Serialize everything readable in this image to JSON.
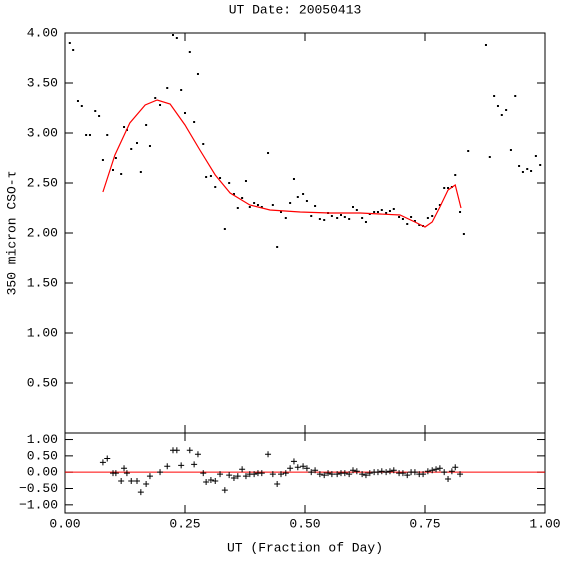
{
  "chart_data": [
    {
      "type": "scatter",
      "title": "UT Date: 20050413",
      "ylabel": "350 micron CSO-τ",
      "xlim": [
        0,
        1
      ],
      "ylim": [
        0,
        4
      ],
      "yticks": [
        {
          "value": 0.5,
          "label": "0.50"
        },
        {
          "value": 1,
          "label": "1.00"
        },
        {
          "value": 1.5,
          "label": "1.50"
        },
        {
          "value": 2,
          "label": "2.00"
        },
        {
          "value": 2.5,
          "label": "2.50"
        },
        {
          "value": 3,
          "label": "3.00"
        },
        {
          "value": 3.5,
          "label": "3.50"
        },
        {
          "value": 4,
          "label": "4.00"
        }
      ],
      "points": {
        "color": "#000000",
        "x": [
          0.01,
          0.017,
          0.027,
          0.035,
          0.044,
          0.052,
          0.063,
          0.071,
          0.079,
          0.088,
          0.1,
          0.106,
          0.117,
          0.123,
          0.129,
          0.138,
          0.15,
          0.158,
          0.169,
          0.177,
          0.188,
          0.198,
          0.213,
          0.225,
          0.233,
          0.242,
          0.25,
          0.26,
          0.269,
          0.277,
          0.288,
          0.294,
          0.304,
          0.313,
          0.323,
          0.333,
          0.342,
          0.352,
          0.36,
          0.369,
          0.377,
          0.385,
          0.394,
          0.402,
          0.41,
          0.423,
          0.433,
          0.442,
          0.45,
          0.46,
          0.469,
          0.477,
          0.485,
          0.496,
          0.504,
          0.513,
          0.521,
          0.531,
          0.54,
          0.548,
          0.556,
          0.567,
          0.575,
          0.583,
          0.592,
          0.6,
          0.608,
          0.619,
          0.627,
          0.635,
          0.644,
          0.652,
          0.66,
          0.669,
          0.677,
          0.685,
          0.696,
          0.704,
          0.713,
          0.721,
          0.729,
          0.738,
          0.746,
          0.756,
          0.765,
          0.773,
          0.781,
          0.79,
          0.798,
          0.806,
          0.813,
          0.823,
          0.831,
          0.84,
          0.877,
          0.885,
          0.894,
          0.902,
          0.91,
          0.919,
          0.929,
          0.938,
          0.946,
          0.954,
          0.963,
          0.971,
          0.981,
          0.99
        ],
        "y": [
          3.9,
          3.83,
          3.32,
          3.27,
          2.98,
          2.98,
          3.22,
          3.17,
          2.73,
          2.98,
          2.63,
          2.75,
          2.59,
          3.06,
          3.03,
          2.84,
          2.9,
          2.61,
          3.08,
          2.87,
          3.35,
          3.28,
          3.45,
          3.98,
          3.95,
          3.43,
          3.2,
          3.81,
          3.11,
          3.59,
          2.89,
          2.56,
          2.57,
          2.46,
          2.55,
          2.04,
          2.5,
          2.39,
          2.25,
          2.35,
          2.52,
          2.26,
          2.3,
          2.28,
          2.26,
          2.8,
          2.28,
          1.86,
          2.21,
          2.15,
          2.3,
          2.54,
          2.36,
          2.39,
          2.32,
          2.17,
          2.27,
          2.14,
          2.13,
          2.2,
          2.17,
          2.15,
          2.18,
          2.16,
          2.14,
          2.26,
          2.23,
          2.15,
          2.11,
          2.19,
          2.21,
          2.21,
          2.23,
          2.2,
          2.22,
          2.24,
          2.16,
          2.14,
          2.09,
          2.16,
          2.12,
          2.08,
          2.07,
          2.15,
          2.17,
          2.24,
          2.28,
          2.45,
          2.45,
          2.46,
          2.58,
          2.21,
          1.99,
          2.82,
          3.88,
          2.76,
          3.37,
          3.27,
          3.18,
          3.23,
          2.83,
          3.37,
          2.67,
          2.61,
          2.64,
          2.62,
          2.77,
          2.68
        ]
      },
      "fit": {
        "color": "#ff0000",
        "x": [
          0.079,
          0.104,
          0.135,
          0.167,
          0.192,
          0.219,
          0.25,
          0.281,
          0.313,
          0.344,
          0.385,
          0.427,
          0.49,
          0.552,
          0.615,
          0.656,
          0.698,
          0.729,
          0.75,
          0.765,
          0.781,
          0.798,
          0.813,
          0.825
        ],
        "y": [
          2.41,
          2.78,
          3.1,
          3.28,
          3.33,
          3.29,
          3.08,
          2.83,
          2.58,
          2.4,
          2.28,
          2.23,
          2.21,
          2.2,
          2.2,
          2.19,
          2.18,
          2.11,
          2.06,
          2.11,
          2.26,
          2.43,
          2.48,
          2.25
        ]
      }
    },
    {
      "type": "residual",
      "xlabel": "UT (Fraction of Day)",
      "xlim": [
        0,
        1
      ],
      "ylim": [
        -1.25,
        1.2
      ],
      "xticks": [
        {
          "value": 0,
          "label": "0.00"
        },
        {
          "value": 0.25,
          "label": "0.25"
        },
        {
          "value": 0.5,
          "label": "0.50"
        },
        {
          "value": 0.75,
          "label": "0.75"
        },
        {
          "value": 1,
          "label": "1.00"
        }
      ],
      "yticks": [
        {
          "value": -1,
          "label": "−1.00"
        },
        {
          "value": -0.5,
          "label": "−0.50"
        },
        {
          "value": 0,
          "label": "0.00"
        },
        {
          "value": 0.5,
          "label": "0.50"
        },
        {
          "value": 1,
          "label": "1.00"
        }
      ],
      "hline": 0,
      "hline_color": "#ff0000",
      "points": {
        "color": "#000000",
        "x": [
          0.079,
          0.088,
          0.1,
          0.106,
          0.117,
          0.123,
          0.129,
          0.138,
          0.15,
          0.158,
          0.169,
          0.177,
          0.198,
          0.213,
          0.225,
          0.233,
          0.242,
          0.26,
          0.269,
          0.277,
          0.288,
          0.294,
          0.304,
          0.313,
          0.323,
          0.333,
          0.342,
          0.352,
          0.36,
          0.369,
          0.377,
          0.385,
          0.394,
          0.402,
          0.41,
          0.423,
          0.433,
          0.442,
          0.45,
          0.46,
          0.469,
          0.477,
          0.485,
          0.496,
          0.504,
          0.513,
          0.521,
          0.531,
          0.54,
          0.548,
          0.556,
          0.567,
          0.575,
          0.583,
          0.592,
          0.6,
          0.608,
          0.619,
          0.627,
          0.635,
          0.644,
          0.652,
          0.66,
          0.669,
          0.677,
          0.685,
          0.696,
          0.704,
          0.713,
          0.721,
          0.729,
          0.738,
          0.746,
          0.756,
          0.765,
          0.773,
          0.781,
          0.79,
          0.798,
          0.806,
          0.813,
          0.823
        ],
        "y": [
          0.3,
          0.42,
          -0.03,
          -0.03,
          -0.27,
          0.12,
          -0.03,
          -0.27,
          -0.27,
          -0.61,
          -0.36,
          -0.12,
          0,
          0.18,
          0.67,
          0.67,
          0.21,
          0.67,
          0.24,
          0.55,
          -0.03,
          -0.3,
          -0.24,
          -0.27,
          -0.06,
          -0.55,
          -0.09,
          -0.18,
          -0.12,
          0.09,
          -0.12,
          -0.06,
          -0.06,
          -0.03,
          -0.03,
          0.55,
          -0.06,
          -0.36,
          -0.06,
          -0.03,
          0.12,
          0.33,
          0.15,
          0.18,
          0.12,
          0,
          0.06,
          -0.06,
          -0.09,
          -0.03,
          -0.06,
          -0.06,
          -0.03,
          -0.03,
          -0.06,
          0.06,
          0.03,
          -0.06,
          -0.09,
          -0.03,
          0,
          0,
          0.03,
          0,
          0.03,
          0.06,
          -0.03,
          -0.03,
          -0.09,
          0,
          0,
          -0.06,
          -0.06,
          0.03,
          0.06,
          0.09,
          0.12,
          0,
          -0.21,
          0.03,
          0.15,
          -0.06
        ]
      }
    }
  ]
}
